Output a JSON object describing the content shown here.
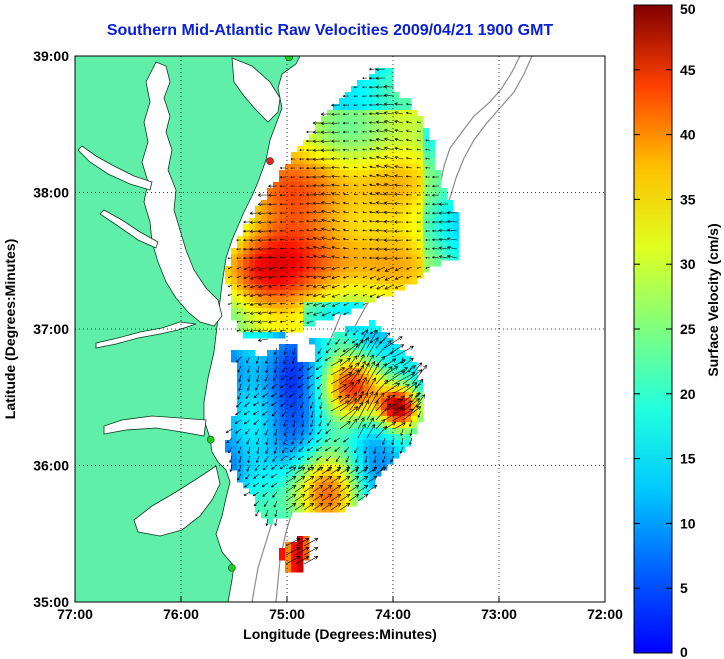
{
  "title": "Southern Mid-Atlantic Raw Velocities 2009/04/21 1900 GMT",
  "axes": {
    "xlabel": "Longitude (Degrees:Minutes)",
    "ylabel": "Latitude (Degrees:Minutes)",
    "x_ticks": [
      "77:00",
      "76:00",
      "75:00",
      "74:00",
      "73:00",
      "72:00"
    ],
    "y_ticks": [
      "39:00",
      "38:00",
      "37:00",
      "36:00",
      "35:00"
    ],
    "x_range": [
      -77,
      -72
    ],
    "y_range": [
      35,
      39
    ],
    "grid": "dotted"
  },
  "colorbar": {
    "label": "Surface Velocity (cm/s)",
    "ticks": [
      "50",
      "45",
      "40",
      "35",
      "30",
      "25",
      "20",
      "15",
      "10",
      "5",
      "0"
    ],
    "range": [
      0,
      50
    ],
    "colormap": "jet"
  },
  "colors": {
    "title": "#0a20d8",
    "land": "#5fefa8",
    "coast_line": "#0a3a20",
    "bathymetry": "#8c8c8c",
    "arrow": "#000000"
  },
  "stations": [
    {
      "lon": -74.98,
      "lat": 38.99,
      "color": "#22cc22"
    },
    {
      "lon": -75.16,
      "lat": 38.23,
      "color": "#ee2222"
    },
    {
      "lon": -75.72,
      "lat": 36.19,
      "color": "#22cc22"
    },
    {
      "lon": -75.52,
      "lat": 35.25,
      "color": "#22cc22"
    }
  ]
}
